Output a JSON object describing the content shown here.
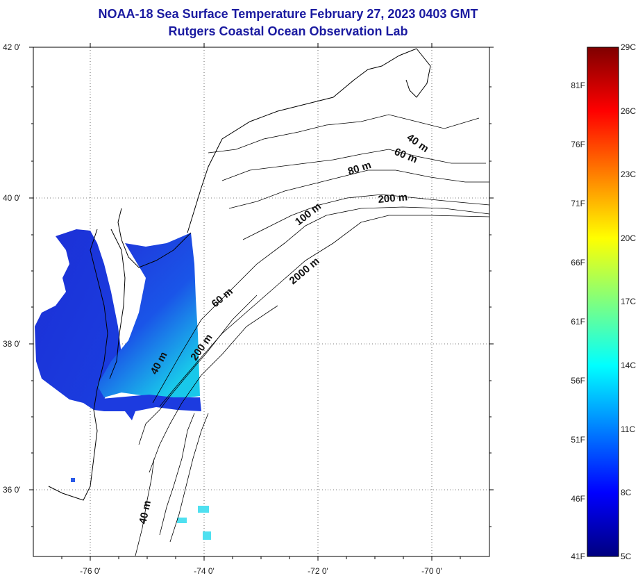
{
  "title": {
    "line1": "NOAA-18 Sea Surface Temperature February 27, 2023 0403 GMT",
    "line2": "Rutgers Coastal Ocean Observation Lab"
  },
  "axes": {
    "lat_labels": [
      "42 0'",
      "40 0'",
      "38 0'",
      "36 0'"
    ],
    "lon_labels": [
      "-76 0'",
      "-74 0'",
      "-72 0'",
      "-70 0'"
    ]
  },
  "contour_labels": [
    "40 m",
    "60 m",
    "80 m",
    "200 m",
    "100 m",
    "2000 m",
    "60 m",
    "200 m",
    "40 m",
    "40 m"
  ],
  "colorbar": {
    "min_c": 5,
    "max_c": 29,
    "celsius_labels": [
      "29C",
      "26C",
      "23C",
      "20C",
      "17C",
      "14C",
      "11C",
      "8C",
      "5C"
    ],
    "fahrenheit_labels": [
      "81F",
      "76F",
      "71F",
      "66F",
      "61F",
      "56F",
      "51F",
      "46F",
      "41F"
    ]
  },
  "colors": {
    "title": "#1a1aa0",
    "coastline": "#000000",
    "sst_cold": "#1c2fd6",
    "sst_mid": "#1a6fe8",
    "sst_warm": "#19d8e8"
  }
}
